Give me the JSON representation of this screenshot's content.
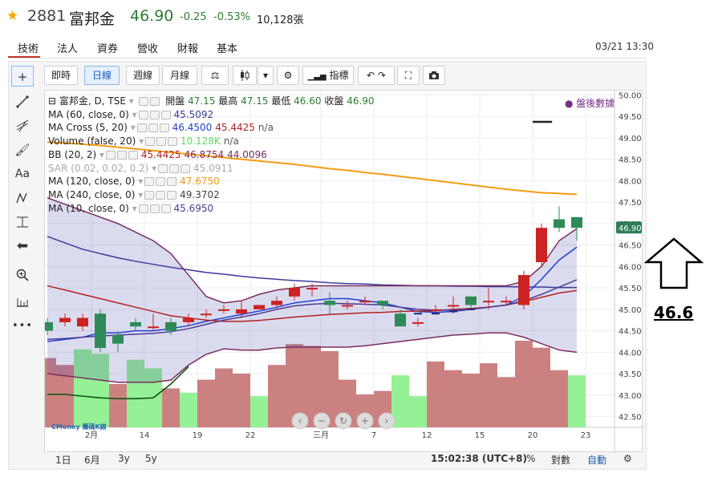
{
  "header": {
    "code": "2881",
    "name": "富邦金",
    "price": "46.90",
    "change": "-0.25",
    "change_pct": "-0.53%",
    "volume": "10,128張",
    "star_icon": "star-icon",
    "price_color": "#2e7d32"
  },
  "nav": {
    "tabs": [
      "技術",
      "法人",
      "資券",
      "營收",
      "財報",
      "基本"
    ],
    "active_tab": "技術",
    "datetime": "03/21 13:30",
    "accent_color": "#c0392b"
  },
  "toolbar": {
    "intervals": [
      "即時",
      "日線",
      "週線",
      "月線"
    ],
    "active_interval": "日線",
    "indicators_label": "指標",
    "icons": [
      "scale-icon",
      "candlestick-icon",
      "dropdown-icon",
      "gear-icon",
      "indicators-icon",
      "undo-icon",
      "redo-icon",
      "fullscreen-icon",
      "camera-icon"
    ]
  },
  "left_tools": {
    "icons": [
      "crosshair-icon",
      "trendline-icon",
      "fib-icon",
      "brush-icon",
      "text-icon",
      "pattern-icon",
      "measure-icon",
      "arrow-left-icon",
      "zoom-icon",
      "ruler-icon",
      "more-icon"
    ],
    "text_tool_label": "Aa",
    "more_label": "•••"
  },
  "legend": {
    "main": {
      "label": "富邦金, D, TSE",
      "open_label": "開盤",
      "open": "47.15",
      "high_label": "最高",
      "high": "47.15",
      "low_label": "最低",
      "low": "46.60",
      "close_label": "收盤",
      "close": "46.90"
    },
    "rows": [
      {
        "label": "MA (60, close, 0)",
        "values": [
          "45.5092"
        ],
        "colors": [
          "#3a3a9e"
        ]
      },
      {
        "label": "MA Cross (5, 20)",
        "values": [
          "46.4500",
          "45.4425",
          "n/a"
        ],
        "colors": [
          "#1f3fd6",
          "#b22222",
          "#555555"
        ]
      },
      {
        "label": "Volume (false, 20)",
        "values": [
          "10.128K",
          "n/a"
        ],
        "colors": [
          "#5dd85d",
          "#555555"
        ]
      },
      {
        "label": "BB (20, 2)",
        "values": [
          "45.4425",
          "46.8754",
          "44.0096"
        ],
        "colors": [
          "#b22222",
          "#7b2d5b",
          "#7b2d5b"
        ]
      },
      {
        "label": "SAR (0.02, 0.02, 0.2)",
        "values": [
          "45.0911"
        ],
        "colors": [
          "#aaaaaa"
        ]
      },
      {
        "label": "MA (120, close, 0)",
        "values": [
          "47.6750"
        ],
        "colors": [
          "#f39c12"
        ]
      },
      {
        "label": "MA (240, close, 0)",
        "values": [
          "49.3702"
        ],
        "colors": [
          "#444444"
        ]
      },
      {
        "label": "MA (10, close, 0)",
        "values": [
          "45.6950"
        ],
        "colors": [
          "#4b3d8f"
        ]
      }
    ]
  },
  "after_hours_label": "盤後數據",
  "side_annotation": "46.6",
  "bottom": {
    "ranges": [
      "1日",
      "6月",
      "3y",
      "5y"
    ],
    "time": "15:02:38 (UTC+8)",
    "percent_label": "%",
    "log_label": "對數",
    "auto_label": "自動",
    "settings_icon": "gear-icon"
  },
  "tv_logo": "CMoney 籌碼K線",
  "chart_data": {
    "type": "candlestick",
    "x_ticks": [
      "2月",
      "14",
      "19",
      "22",
      "三月",
      "7",
      "12",
      "15",
      "20",
      "23"
    ],
    "y_ticks": [
      42.5,
      43.0,
      43.5,
      44.0,
      44.5,
      45.0,
      45.5,
      46.0,
      46.5,
      47.0,
      47.5,
      48.0,
      48.5,
      49.0,
      49.5,
      50.0
    ],
    "ylim": [
      42.25,
      50.1
    ],
    "last_price_label": "46.90",
    "candles": [
      {
        "o": 44.7,
        "c": 44.5,
        "h": 44.8,
        "l": 44.4
      },
      {
        "o": 44.7,
        "c": 44.8,
        "h": 44.9,
        "l": 44.6
      },
      {
        "o": 44.6,
        "c": 44.8,
        "h": 44.9,
        "l": 44.5
      },
      {
        "o": 44.9,
        "c": 44.1,
        "h": 45.0,
        "l": 44.0
      },
      {
        "o": 44.4,
        "c": 44.2,
        "h": 44.5,
        "l": 44.0
      },
      {
        "o": 44.7,
        "c": 44.6,
        "h": 44.8,
        "l": 44.5
      },
      {
        "o": 44.6,
        "c": 44.6,
        "h": 44.9,
        "l": 44.5
      },
      {
        "o": 44.7,
        "c": 44.5,
        "h": 44.8,
        "l": 44.4
      },
      {
        "o": 44.7,
        "c": 44.8,
        "h": 44.9,
        "l": 44.6
      },
      {
        "o": 44.9,
        "c": 44.9,
        "h": 45.0,
        "l": 44.8
      },
      {
        "o": 45.0,
        "c": 45.0,
        "h": 45.1,
        "l": 44.9
      },
      {
        "o": 44.9,
        "c": 45.0,
        "h": 45.2,
        "l": 44.8
      },
      {
        "o": 45.0,
        "c": 45.1,
        "h": 45.1,
        "l": 45.0
      },
      {
        "o": 45.1,
        "c": 45.2,
        "h": 45.3,
        "l": 45.0
      },
      {
        "o": 45.3,
        "c": 45.5,
        "h": 45.6,
        "l": 45.2
      },
      {
        "o": 45.5,
        "c": 45.5,
        "h": 45.6,
        "l": 45.3
      },
      {
        "o": 45.2,
        "c": 45.1,
        "h": 45.4,
        "l": 44.9
      },
      {
        "o": 45.1,
        "c": 45.1,
        "h": 45.2,
        "l": 45.0
      },
      {
        "o": 45.2,
        "c": 45.2,
        "h": 45.3,
        "l": 45.1
      },
      {
        "o": 45.2,
        "c": 45.1,
        "h": 45.2,
        "l": 45.0
      },
      {
        "o": 44.9,
        "c": 44.6,
        "h": 45.0,
        "l": 44.6
      },
      {
        "o": 44.7,
        "c": 44.7,
        "h": 44.8,
        "l": 44.6
      },
      {
        "o": 45.0,
        "c": 45.0,
        "h": 45.1,
        "l": 44.9
      },
      {
        "o": 45.1,
        "c": 45.1,
        "h": 45.3,
        "l": 44.9
      },
      {
        "o": 45.3,
        "c": 45.1,
        "h": 45.3,
        "l": 45.0
      },
      {
        "o": 45.2,
        "c": 45.2,
        "h": 45.5,
        "l": 45.0
      },
      {
        "o": 45.2,
        "c": 45.2,
        "h": 45.3,
        "l": 45.1
      },
      {
        "o": 45.1,
        "c": 45.8,
        "h": 45.9,
        "l": 45.0
      },
      {
        "o": 46.1,
        "c": 46.9,
        "h": 47.0,
        "l": 46.0
      },
      {
        "o": 47.1,
        "c": 46.9,
        "h": 47.4,
        "l": 46.8
      },
      {
        "o": 47.15,
        "c": 46.9,
        "h": 47.15,
        "l": 46.6
      }
    ],
    "volume_relative": [
      0.8,
      0.72,
      0.9,
      0.85,
      0.5,
      0.78,
      0.68,
      0.45,
      0.4,
      0.55,
      0.68,
      0.62,
      0.36,
      0.72,
      0.96,
      0.94,
      0.88,
      0.55,
      0.38,
      0.42,
      0.6,
      0.36,
      0.76,
      0.66,
      0.62,
      0.74,
      0.58,
      1.0,
      0.92,
      0.66,
      0.6
    ],
    "volume_up": [
      false,
      false,
      true,
      true,
      false,
      true,
      true,
      false,
      true,
      false,
      false,
      false,
      true,
      false,
      false,
      false,
      false,
      false,
      false,
      false,
      true,
      true,
      false,
      false,
      false,
      false,
      false,
      false,
      false,
      false,
      true
    ],
    "series": [
      {
        "name": "MA (60, close, 0)",
        "color": "#3a3a9e",
        "values": [
          46.7,
          46.55,
          46.4,
          46.3,
          46.2,
          46.12,
          46.05,
          45.98,
          45.92,
          45.86,
          45.82,
          45.77,
          45.73,
          45.7,
          45.67,
          45.65,
          45.62,
          45.6,
          45.59,
          45.57,
          45.56,
          45.55,
          45.55,
          45.54,
          45.54,
          45.53,
          45.53,
          45.52,
          45.52,
          45.51,
          45.51
        ]
      },
      {
        "name": "MA (120, close, 0)",
        "color": "#f39c12",
        "values": [
          48.9,
          48.88,
          48.85,
          48.82,
          48.78,
          48.74,
          48.7,
          48.66,
          48.62,
          48.58,
          48.54,
          48.5,
          48.46,
          48.42,
          48.38,
          48.33,
          48.28,
          48.24,
          48.19,
          48.15,
          48.1,
          48.05,
          48.0,
          47.95,
          47.9,
          47.85,
          47.8,
          47.76,
          47.72,
          47.7,
          47.68
        ]
      },
      {
        "name": "MA Cross 5",
        "color": "#1f3fd6",
        "values": [
          44.25,
          44.3,
          44.35,
          44.45,
          44.45,
          44.5,
          44.5,
          44.55,
          44.62,
          44.72,
          44.8,
          44.88,
          44.96,
          45.05,
          45.15,
          45.2,
          45.25,
          45.25,
          45.2,
          45.15,
          45.05,
          44.95,
          44.93,
          44.95,
          45.0,
          45.05,
          45.1,
          45.3,
          45.7,
          46.15,
          46.45
        ]
      },
      {
        "name": "MA Cross 20",
        "color": "#b22222",
        "values": [
          45.55,
          45.45,
          45.35,
          45.25,
          45.15,
          45.05,
          44.95,
          44.85,
          44.8,
          44.75,
          44.72,
          44.72,
          44.74,
          44.78,
          44.82,
          44.85,
          44.88,
          44.9,
          44.92,
          44.93,
          44.95,
          44.96,
          44.97,
          45.0,
          45.02,
          45.05,
          45.1,
          45.18,
          45.28,
          45.38,
          45.44
        ]
      },
      {
        "name": "MA (10, close, 0)",
        "color": "#4b3d8f",
        "values": [
          44.3,
          44.32,
          44.35,
          44.38,
          44.4,
          44.42,
          44.44,
          44.48,
          44.55,
          44.65,
          44.75,
          44.82,
          44.9,
          45.0,
          45.08,
          45.12,
          45.14,
          45.13,
          45.12,
          45.1,
          45.05,
          45.0,
          44.98,
          44.98,
          45.0,
          45.05,
          45.1,
          45.2,
          45.35,
          45.52,
          45.69
        ]
      },
      {
        "name": "BB upper",
        "color": "#7b2d5b",
        "values": [
          47.6,
          47.45,
          47.3,
          47.15,
          47.0,
          46.8,
          46.6,
          46.3,
          45.8,
          45.3,
          45.15,
          45.2,
          45.35,
          45.45,
          45.5,
          45.55,
          45.55,
          45.55,
          45.55,
          45.55,
          45.55,
          45.55,
          45.55,
          45.55,
          45.55,
          45.55,
          45.55,
          45.65,
          46.0,
          46.6,
          46.88
        ]
      },
      {
        "name": "BB lower",
        "color": "#7b2d5b",
        "values": [
          43.5,
          43.45,
          43.4,
          43.35,
          43.3,
          43.3,
          43.3,
          43.35,
          43.7,
          43.95,
          44.08,
          44.05,
          44.05,
          44.1,
          44.12,
          44.12,
          44.12,
          44.12,
          44.15,
          44.2,
          44.25,
          44.3,
          44.35,
          44.4,
          44.42,
          44.45,
          44.45,
          44.35,
          44.2,
          44.05,
          44.0
        ]
      },
      {
        "name": "Volume MA",
        "color": "#145214",
        "values": [
          0.38,
          0.38,
          0.36,
          0.34,
          0.33,
          0.33,
          0.34,
          0.5,
          0.7
        ]
      }
    ],
    "sar_points": [
      {
        "i": 21,
        "v": 44.9
      },
      {
        "i": 22,
        "v": 44.9
      },
      {
        "i": 23,
        "v": 44.95
      },
      {
        "i": 24,
        "v": 45.0
      }
    ],
    "volume_ma_visible_points": 9
  }
}
